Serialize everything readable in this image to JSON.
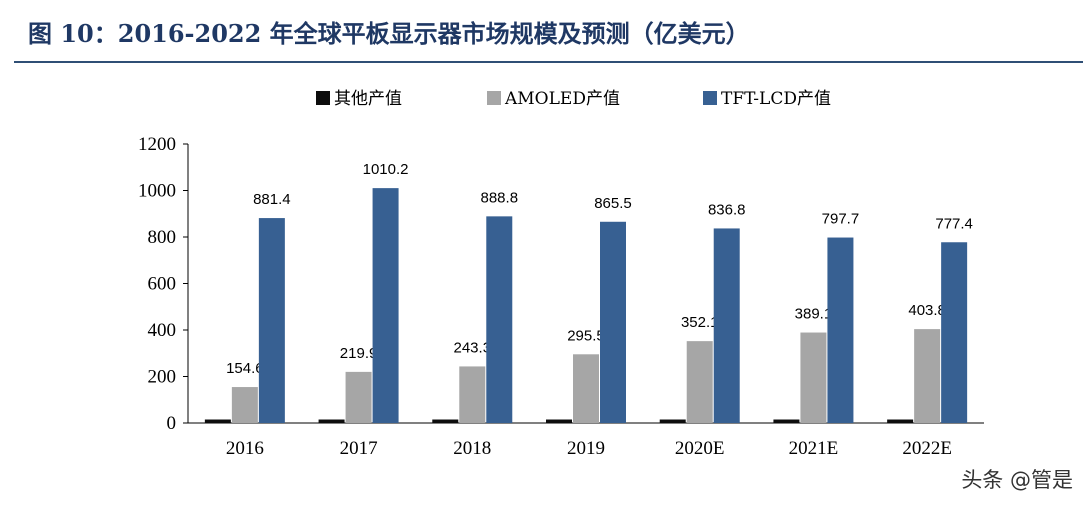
{
  "header": {
    "title": "图 10：2016-2022 年全球平板显示器市场规模及预测（亿美元）"
  },
  "watermark": "头条 @管是",
  "chart_data": {
    "type": "bar",
    "categories": [
      "2016",
      "2017",
      "2018",
      "2019",
      "2020E",
      "2021E",
      "2022E"
    ],
    "series": [
      {
        "name": "其他产值",
        "color": "#0d0d0d",
        "values": [
          15,
          15,
          15,
          15,
          15,
          15,
          15
        ],
        "labeled": false
      },
      {
        "name": "AMOLED产值",
        "color": "#a6a6a6",
        "values": [
          154.6,
          219.9,
          243.3,
          295.5,
          352.1,
          389.1,
          403.8
        ],
        "labeled": true
      },
      {
        "name": "TFT-LCD产值",
        "color": "#376092",
        "values": [
          881.4,
          1010.2,
          888.8,
          865.5,
          836.8,
          797.7,
          777.4
        ],
        "labeled": true
      }
    ],
    "yticks": [
      0,
      200,
      400,
      600,
      800,
      1000,
      1200
    ],
    "ylim": [
      0,
      1200
    ],
    "grid": false,
    "legend_position": "top"
  }
}
